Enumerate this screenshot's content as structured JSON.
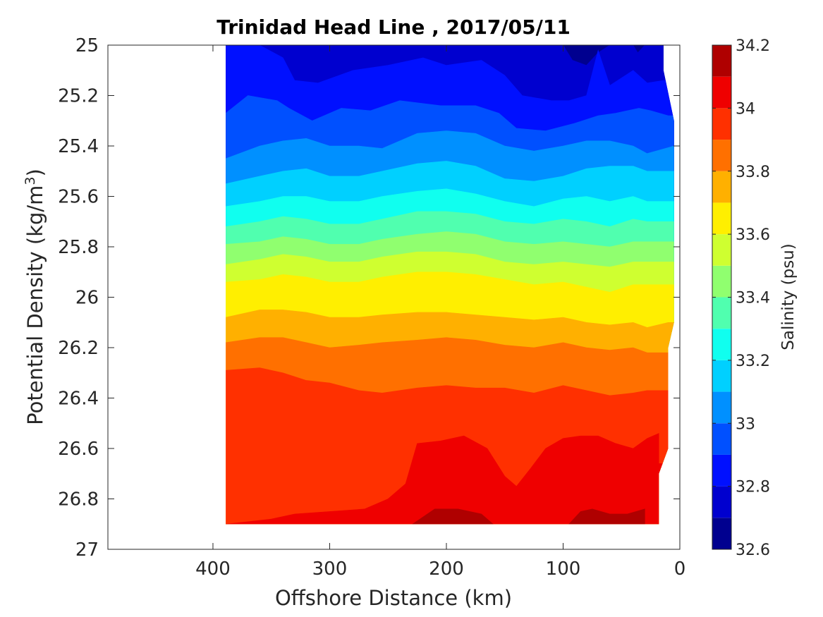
{
  "chart_data": {
    "type": "contour",
    "title": "Trinidad Head Line , 2017/05/11",
    "xlabel": "Offshore Distance (km)",
    "ylabel": "Potential Density (kg/m",
    "ylabel_superscript": "3",
    "ylabel_close": ")",
    "colorbar_label": "Salinity (psu)",
    "xlim": [
      490,
      0
    ],
    "x_reversed": true,
    "ylim": [
      25,
      27
    ],
    "y_reversed": true,
    "x_ticks": [
      400,
      300,
      200,
      100,
      0
    ],
    "y_ticks": [
      "25",
      "25.2",
      "25.4",
      "25.6",
      "25.8",
      "26",
      "26.2",
      "26.4",
      "26.6",
      "26.8",
      "27"
    ],
    "colorbar_range": [
      32.6,
      34.2
    ],
    "colorbar_ticks": [
      "32.6",
      "32.8",
      "33",
      "33.2",
      "33.4",
      "33.6",
      "33.8",
      "34",
      "34.2"
    ],
    "colormap": "jet",
    "levels": [
      32.6,
      32.7,
      32.8,
      32.9,
      33.0,
      33.1,
      33.2,
      33.3,
      33.4,
      33.5,
      33.6,
      33.7,
      33.8,
      33.9,
      34.0,
      34.1,
      34.2
    ],
    "level_colors": [
      "#00008f",
      "#0000cf",
      "#0010ff",
      "#0050ff",
      "#0090ff",
      "#00d0ff",
      "#10ffef",
      "#50ffaf",
      "#90ff6f",
      "#cfff30",
      "#ffef00",
      "#ffb000",
      "#ff7000",
      "#ff3000",
      "#ef0000",
      "#af0000"
    ],
    "data_extent": {
      "x_max_km": 389,
      "density_bottom": 26.9,
      "inshore_edge": [
        {
          "density": 25.0,
          "x": 14
        },
        {
          "density": 25.1,
          "x": 14
        },
        {
          "density": 25.3,
          "x": 5
        },
        {
          "density": 26.1,
          "x": 5
        },
        {
          "density": 26.2,
          "x": 10
        },
        {
          "density": 26.6,
          "x": 10
        },
        {
          "density": 26.7,
          "x": 18
        },
        {
          "density": 26.9,
          "x": 18
        }
      ]
    },
    "isohalines": [
      {
        "level": 32.7,
        "points": [
          [
            389,
            25.0
          ],
          [
            100,
            25.0
          ],
          [
            92,
            25.06
          ],
          [
            80,
            25.08
          ],
          [
            70,
            25.03
          ],
          [
            60,
            25.0
          ],
          [
            40,
            25.0
          ],
          [
            36,
            25.03
          ],
          [
            30,
            25.0
          ],
          [
            14,
            25.0
          ]
        ]
      },
      {
        "level": 32.8,
        "points": [
          [
            389,
            25.0
          ],
          [
            360,
            25.0
          ],
          [
            340,
            25.05
          ],
          [
            330,
            25.14
          ],
          [
            310,
            25.15
          ],
          [
            280,
            25.1
          ],
          [
            250,
            25.08
          ],
          [
            220,
            25.05
          ],
          [
            200,
            25.08
          ],
          [
            170,
            25.06
          ],
          [
            150,
            25.12
          ],
          [
            135,
            25.2
          ],
          [
            110,
            25.22
          ],
          [
            95,
            25.22
          ],
          [
            80,
            25.2
          ],
          [
            70,
            25.02
          ],
          [
            60,
            25.16
          ],
          [
            40,
            25.1
          ],
          [
            28,
            25.15
          ],
          [
            14,
            25.14
          ]
        ]
      },
      {
        "level": 32.9,
        "points": [
          [
            389,
            25.27
          ],
          [
            370,
            25.2
          ],
          [
            345,
            25.22
          ],
          [
            335,
            25.25
          ],
          [
            315,
            25.3
          ],
          [
            290,
            25.25
          ],
          [
            265,
            25.26
          ],
          [
            240,
            25.22
          ],
          [
            205,
            25.24
          ],
          [
            175,
            25.24
          ],
          [
            155,
            25.27
          ],
          [
            140,
            25.33
          ],
          [
            115,
            25.34
          ],
          [
            90,
            25.31
          ],
          [
            70,
            25.28
          ],
          [
            55,
            25.27
          ],
          [
            35,
            25.25
          ],
          [
            25,
            25.26
          ],
          [
            10,
            25.28
          ]
        ]
      },
      {
        "level": 33.0,
        "points": [
          [
            389,
            25.45
          ],
          [
            360,
            25.4
          ],
          [
            340,
            25.38
          ],
          [
            320,
            25.37
          ],
          [
            300,
            25.4
          ],
          [
            275,
            25.4
          ],
          [
            255,
            25.41
          ],
          [
            225,
            25.35
          ],
          [
            200,
            25.34
          ],
          [
            175,
            25.35
          ],
          [
            150,
            25.4
          ],
          [
            125,
            25.42
          ],
          [
            100,
            25.4
          ],
          [
            80,
            25.38
          ],
          [
            60,
            25.38
          ],
          [
            40,
            25.4
          ],
          [
            28,
            25.43
          ],
          [
            5,
            25.4
          ]
        ]
      },
      {
        "level": 33.1,
        "points": [
          [
            389,
            25.55
          ],
          [
            360,
            25.52
          ],
          [
            340,
            25.5
          ],
          [
            320,
            25.49
          ],
          [
            300,
            25.52
          ],
          [
            275,
            25.52
          ],
          [
            255,
            25.5
          ],
          [
            225,
            25.47
          ],
          [
            200,
            25.46
          ],
          [
            175,
            25.48
          ],
          [
            150,
            25.53
          ],
          [
            125,
            25.54
          ],
          [
            100,
            25.52
          ],
          [
            80,
            25.49
          ],
          [
            60,
            25.48
          ],
          [
            40,
            25.48
          ],
          [
            28,
            25.5
          ],
          [
            5,
            25.5
          ]
        ]
      },
      {
        "level": 33.2,
        "points": [
          [
            389,
            25.64
          ],
          [
            360,
            25.62
          ],
          [
            340,
            25.6
          ],
          [
            320,
            25.6
          ],
          [
            300,
            25.62
          ],
          [
            275,
            25.62
          ],
          [
            255,
            25.6
          ],
          [
            225,
            25.58
          ],
          [
            200,
            25.57
          ],
          [
            175,
            25.59
          ],
          [
            150,
            25.62
          ],
          [
            125,
            25.64
          ],
          [
            100,
            25.61
          ],
          [
            80,
            25.6
          ],
          [
            60,
            25.62
          ],
          [
            40,
            25.6
          ],
          [
            28,
            25.62
          ],
          [
            5,
            25.62
          ]
        ]
      },
      {
        "level": 33.3,
        "points": [
          [
            389,
            25.72
          ],
          [
            360,
            25.7
          ],
          [
            340,
            25.68
          ],
          [
            320,
            25.69
          ],
          [
            300,
            25.71
          ],
          [
            275,
            25.71
          ],
          [
            255,
            25.69
          ],
          [
            225,
            25.66
          ],
          [
            200,
            25.66
          ],
          [
            175,
            25.67
          ],
          [
            150,
            25.7
          ],
          [
            125,
            25.71
          ],
          [
            100,
            25.69
          ],
          [
            80,
            25.7
          ],
          [
            60,
            25.72
          ],
          [
            40,
            25.69
          ],
          [
            28,
            25.7
          ],
          [
            5,
            25.7
          ]
        ]
      },
      {
        "level": 33.4,
        "points": [
          [
            389,
            25.79
          ],
          [
            360,
            25.78
          ],
          [
            340,
            25.76
          ],
          [
            320,
            25.77
          ],
          [
            300,
            25.79
          ],
          [
            275,
            25.79
          ],
          [
            255,
            25.77
          ],
          [
            225,
            25.75
          ],
          [
            200,
            25.74
          ],
          [
            175,
            25.75
          ],
          [
            150,
            25.78
          ],
          [
            125,
            25.79
          ],
          [
            100,
            25.78
          ],
          [
            80,
            25.79
          ],
          [
            60,
            25.8
          ],
          [
            40,
            25.78
          ],
          [
            28,
            25.78
          ],
          [
            5,
            25.78
          ]
        ]
      },
      {
        "level": 33.5,
        "points": [
          [
            389,
            25.87
          ],
          [
            360,
            25.85
          ],
          [
            340,
            25.83
          ],
          [
            320,
            25.84
          ],
          [
            300,
            25.86
          ],
          [
            275,
            25.86
          ],
          [
            255,
            25.84
          ],
          [
            225,
            25.82
          ],
          [
            200,
            25.82
          ],
          [
            175,
            25.83
          ],
          [
            150,
            25.86
          ],
          [
            125,
            25.87
          ],
          [
            100,
            25.86
          ],
          [
            80,
            25.87
          ],
          [
            60,
            25.88
          ],
          [
            40,
            25.86
          ],
          [
            28,
            25.86
          ],
          [
            5,
            25.86
          ]
        ]
      },
      {
        "level": 33.6,
        "points": [
          [
            389,
            25.94
          ],
          [
            360,
            25.93
          ],
          [
            340,
            25.91
          ],
          [
            320,
            25.92
          ],
          [
            300,
            25.94
          ],
          [
            275,
            25.94
          ],
          [
            255,
            25.92
          ],
          [
            225,
            25.9
          ],
          [
            200,
            25.9
          ],
          [
            175,
            25.91
          ],
          [
            150,
            25.93
          ],
          [
            125,
            25.95
          ],
          [
            100,
            25.94
          ],
          [
            80,
            25.96
          ],
          [
            60,
            25.98
          ],
          [
            40,
            25.95
          ],
          [
            28,
            25.95
          ],
          [
            5,
            25.95
          ]
        ]
      },
      {
        "level": 33.7,
        "points": [
          [
            389,
            26.08
          ],
          [
            360,
            26.05
          ],
          [
            340,
            26.05
          ],
          [
            320,
            26.06
          ],
          [
            300,
            26.08
          ],
          [
            275,
            26.08
          ],
          [
            255,
            26.07
          ],
          [
            225,
            26.06
          ],
          [
            200,
            26.06
          ],
          [
            175,
            26.07
          ],
          [
            150,
            26.08
          ],
          [
            125,
            26.09
          ],
          [
            100,
            26.08
          ],
          [
            80,
            26.1
          ],
          [
            60,
            26.11
          ],
          [
            40,
            26.1
          ],
          [
            28,
            26.12
          ],
          [
            10,
            26.1
          ]
        ]
      },
      {
        "level": 33.8,
        "points": [
          [
            389,
            26.18
          ],
          [
            360,
            26.16
          ],
          [
            340,
            26.16
          ],
          [
            320,
            26.18
          ],
          [
            300,
            26.2
          ],
          [
            275,
            26.19
          ],
          [
            255,
            26.18
          ],
          [
            225,
            26.17
          ],
          [
            200,
            26.16
          ],
          [
            175,
            26.17
          ],
          [
            150,
            26.19
          ],
          [
            125,
            26.2
          ],
          [
            100,
            26.18
          ],
          [
            80,
            26.2
          ],
          [
            60,
            26.21
          ],
          [
            40,
            26.2
          ],
          [
            28,
            26.22
          ],
          [
            10,
            26.22
          ]
        ]
      },
      {
        "level": 33.9,
        "points": [
          [
            389,
            26.29
          ],
          [
            360,
            26.28
          ],
          [
            340,
            26.3
          ],
          [
            320,
            26.33
          ],
          [
            300,
            26.34
          ],
          [
            275,
            26.37
          ],
          [
            255,
            26.38
          ],
          [
            225,
            26.36
          ],
          [
            200,
            26.35
          ],
          [
            175,
            26.36
          ],
          [
            150,
            26.36
          ],
          [
            125,
            26.38
          ],
          [
            100,
            26.35
          ],
          [
            80,
            26.37
          ],
          [
            60,
            26.39
          ],
          [
            40,
            26.38
          ],
          [
            28,
            26.37
          ],
          [
            10,
            26.37
          ]
        ]
      },
      {
        "level": 34.0,
        "points": [
          [
            389,
            26.9
          ],
          [
            350,
            26.88
          ],
          [
            330,
            26.86
          ],
          [
            300,
            26.85
          ],
          [
            270,
            26.84
          ],
          [
            250,
            26.8
          ],
          [
            235,
            26.74
          ],
          [
            225,
            26.58
          ],
          [
            205,
            26.57
          ],
          [
            185,
            26.55
          ],
          [
            165,
            26.6
          ],
          [
            150,
            26.71
          ],
          [
            140,
            26.75
          ],
          [
            128,
            26.68
          ],
          [
            115,
            26.6
          ],
          [
            100,
            26.56
          ],
          [
            85,
            26.55
          ],
          [
            70,
            26.55
          ],
          [
            55,
            26.58
          ],
          [
            40,
            26.6
          ],
          [
            28,
            26.56
          ],
          [
            18,
            26.54
          ],
          [
            18,
            26.66
          ]
        ]
      },
      {
        "level": 34.1,
        "points": [
          [
            229,
            26.9
          ],
          [
            210,
            26.84
          ],
          [
            190,
            26.84
          ],
          [
            170,
            26.86
          ],
          [
            160,
            26.9
          ]
        ]
      },
      {
        "level": 34.1,
        "points": [
          [
            95,
            26.9
          ],
          [
            85,
            26.85
          ],
          [
            75,
            26.84
          ],
          [
            60,
            26.86
          ],
          [
            45,
            26.86
          ],
          [
            30,
            26.84
          ],
          [
            30,
            26.9
          ]
        ]
      }
    ]
  }
}
